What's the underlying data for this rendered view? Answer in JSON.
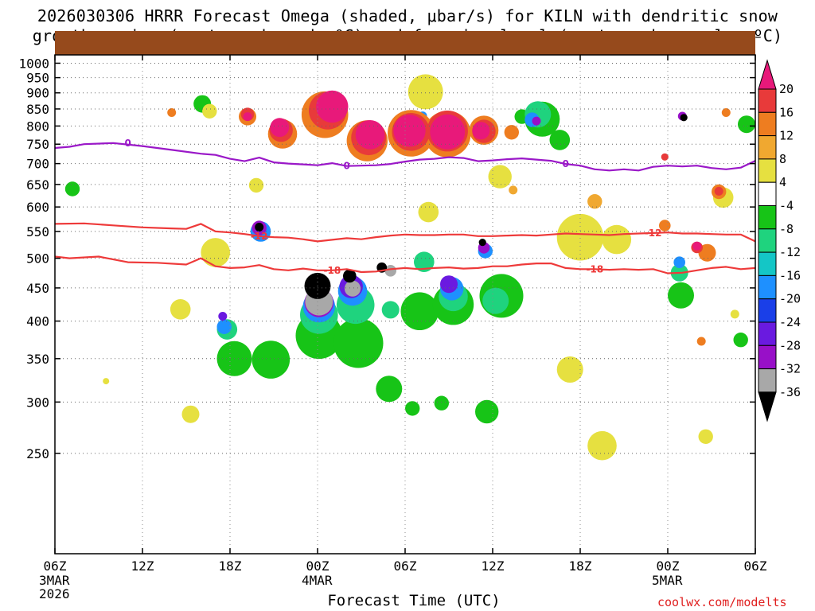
{
  "chart_data": {
    "type": "heatmap",
    "title_line1": "2026030306 HRRR Forecast Omega (shaded, μbar/s) for KILN with dendritic snow",
    "title_line2": "growth region (contoured, red, ºC) and freezing level (contoured, purple, ºC)",
    "xlabel": "Forecast Time (UTC)",
    "credit": "coolwx.com/modelts",
    "x_hours_range": [
      0,
      48
    ],
    "y_pressure_range": [
      1030,
      175
    ],
    "x_ticks": [
      {
        "hour": 0,
        "label": "06Z",
        "sub": [
          "3MAR",
          "2026"
        ]
      },
      {
        "hour": 6,
        "label": "12Z",
        "sub": []
      },
      {
        "hour": 12,
        "label": "18Z",
        "sub": []
      },
      {
        "hour": 18,
        "label": "00Z",
        "sub": [
          "4MAR"
        ]
      },
      {
        "hour": 24,
        "label": "06Z",
        "sub": []
      },
      {
        "hour": 30,
        "label": "12Z",
        "sub": []
      },
      {
        "hour": 36,
        "label": "18Z",
        "sub": []
      },
      {
        "hour": 42,
        "label": "00Z",
        "sub": [
          "5MAR"
        ]
      },
      {
        "hour": 48,
        "label": "06Z",
        "sub": []
      }
    ],
    "y_ticks": [
      250,
      300,
      350,
      400,
      450,
      500,
      550,
      600,
      650,
      700,
      750,
      800,
      850,
      900,
      950,
      1000
    ],
    "colorbar": {
      "labels": [
        "20",
        "16",
        "12",
        "8",
        "4",
        "-4",
        "-8",
        "-12",
        "-16",
        "-20",
        "-24",
        "-28",
        "-32",
        "-36"
      ],
      "colors": [
        "#e8197a",
        "#e83a3a",
        "#ee7d20",
        "#f0a830",
        "#e6e040",
        "#ffffff",
        "#17c417",
        "#1fd37e",
        "#14c6c6",
        "#1e90ff",
        "#1a3fe8",
        "#6a1ae0",
        "#9810c8",
        "#a8a8a8",
        "#000000"
      ]
    },
    "contours": [
      {
        "name": "-18C",
        "label": "-18",
        "color": "#ee3a3a",
        "points": [
          [
            0,
            503
          ],
          [
            1,
            500
          ],
          [
            3,
            503
          ],
          [
            5,
            493
          ],
          [
            7,
            492
          ],
          [
            9,
            489
          ],
          [
            10,
            500
          ],
          [
            11,
            486
          ],
          [
            12,
            483
          ],
          [
            13,
            484
          ],
          [
            14,
            488
          ],
          [
            15,
            481
          ],
          [
            16,
            479
          ],
          [
            17,
            482
          ],
          [
            18,
            479
          ],
          [
            19,
            479
          ],
          [
            20,
            481
          ],
          [
            21,
            476
          ],
          [
            22,
            477
          ],
          [
            23,
            481
          ],
          [
            24,
            483
          ],
          [
            25,
            481
          ],
          [
            26,
            483
          ],
          [
            27,
            484
          ],
          [
            28,
            482
          ],
          [
            29,
            483
          ],
          [
            30,
            486
          ],
          [
            31,
            486
          ],
          [
            32,
            489
          ],
          [
            33,
            491
          ],
          [
            34,
            491
          ],
          [
            35,
            483
          ],
          [
            36,
            481
          ],
          [
            37,
            481
          ],
          [
            38,
            480
          ],
          [
            39,
            481
          ],
          [
            40,
            480
          ],
          [
            41,
            481
          ],
          [
            42,
            474
          ],
          [
            43,
            475
          ],
          [
            44,
            479
          ],
          [
            45,
            483
          ],
          [
            46,
            485
          ],
          [
            47,
            481
          ],
          [
            48,
            483
          ]
        ],
        "label_at": [
          [
            19,
            "-18"
          ],
          [
            37,
            "-18"
          ]
        ]
      },
      {
        "name": "-12C",
        "label": "-12",
        "color": "#ee3a3a",
        "points": [
          [
            0,
            565
          ],
          [
            2,
            566
          ],
          [
            4,
            562
          ],
          [
            6,
            558
          ],
          [
            8,
            556
          ],
          [
            9,
            555
          ],
          [
            10,
            565
          ],
          [
            11,
            550
          ],
          [
            12,
            548
          ],
          [
            13,
            545
          ],
          [
            14,
            541
          ],
          [
            15,
            539
          ],
          [
            16,
            538
          ],
          [
            17,
            535
          ],
          [
            18,
            531
          ],
          [
            19,
            534
          ],
          [
            20,
            537
          ],
          [
            21,
            535
          ],
          [
            22,
            539
          ],
          [
            23,
            542
          ],
          [
            24,
            544
          ],
          [
            25,
            543
          ],
          [
            26,
            543
          ],
          [
            27,
            544
          ],
          [
            28,
            544
          ],
          [
            29,
            541
          ],
          [
            30,
            541
          ],
          [
            31,
            542
          ],
          [
            32,
            543
          ],
          [
            33,
            542
          ],
          [
            34,
            544
          ],
          [
            35,
            546
          ],
          [
            36,
            545
          ],
          [
            37,
            544
          ],
          [
            38,
            543
          ],
          [
            39,
            545
          ],
          [
            40,
            546
          ],
          [
            41,
            547
          ],
          [
            42,
            548
          ],
          [
            43,
            546
          ],
          [
            44,
            546
          ],
          [
            45,
            545
          ],
          [
            46,
            544
          ],
          [
            47,
            544
          ],
          [
            48,
            531
          ]
        ],
        "label_at": [
          [
            14,
            "-12"
          ],
          [
            41,
            "-12"
          ]
        ]
      },
      {
        "name": "0C",
        "label": "0",
        "color": "#9a18c8",
        "points": [
          [
            0,
            740
          ],
          [
            1,
            743
          ],
          [
            2,
            750
          ],
          [
            4,
            753
          ],
          [
            6,
            745
          ],
          [
            8,
            735
          ],
          [
            10,
            725
          ],
          [
            11,
            722
          ],
          [
            12,
            712
          ],
          [
            13,
            706
          ],
          [
            14,
            715
          ],
          [
            15,
            703
          ],
          [
            16,
            700
          ],
          [
            17,
            698
          ],
          [
            18,
            696
          ],
          [
            19,
            701
          ],
          [
            20,
            694
          ],
          [
            21,
            695
          ],
          [
            22,
            696
          ],
          [
            23,
            699
          ],
          [
            24,
            705
          ],
          [
            25,
            710
          ],
          [
            26,
            712
          ],
          [
            27,
            716
          ],
          [
            28,
            714
          ],
          [
            29,
            706
          ],
          [
            30,
            708
          ],
          [
            31,
            711
          ],
          [
            32,
            713
          ],
          [
            33,
            710
          ],
          [
            34,
            707
          ],
          [
            35,
            699
          ],
          [
            36,
            695
          ],
          [
            37,
            686
          ],
          [
            38,
            683
          ],
          [
            39,
            686
          ],
          [
            40,
            683
          ],
          [
            41,
            692
          ],
          [
            42,
            695
          ],
          [
            43,
            693
          ],
          [
            44,
            695
          ],
          [
            45,
            689
          ],
          [
            46,
            686
          ],
          [
            47,
            690
          ],
          [
            48,
            707
          ]
        ],
        "label_at": [
          [
            5,
            "0"
          ],
          [
            20,
            "0"
          ],
          [
            35,
            "0"
          ]
        ]
      }
    ]
  }
}
